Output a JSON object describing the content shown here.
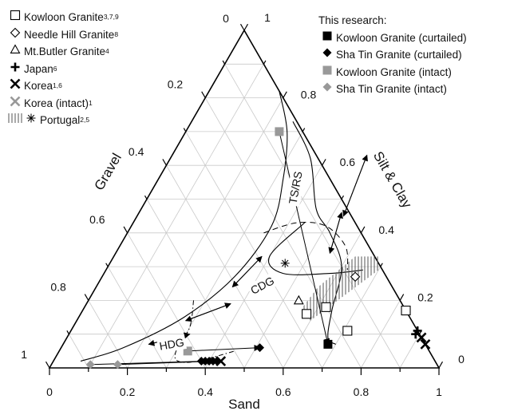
{
  "chart_data": {
    "type": "ternary",
    "axes": {
      "bottom": {
        "label": "Sand",
        "ticks": [
          "0",
          "0.2",
          "0.4",
          "0.6",
          "0.8",
          "1"
        ]
      },
      "left": {
        "label": "Gravel",
        "ticks": [
          "0.2",
          "0.4",
          "0.6",
          "0.8",
          "1"
        ],
        "top_tick": "0"
      },
      "right": {
        "label": "Silt & Clay",
        "ticks": [
          "0.2",
          "0.4",
          "0.6",
          "0.8"
        ],
        "top_tick": "1",
        "corner_tick": "0"
      }
    },
    "grid": "triangular, step 0.1",
    "annotations": [
      "TS/RS",
      "CDG",
      "HDG"
    ],
    "legend_literature": [
      {
        "name": "Kowloon Granite",
        "refs": "3,7,9",
        "marker": "open-square"
      },
      {
        "name": "Needle Hill Granite",
        "refs": "8",
        "marker": "open-diamond"
      },
      {
        "name": "Mt.Butler Granite",
        "refs": "4",
        "marker": "open-triangle"
      },
      {
        "name": "Japan",
        "refs": "6",
        "marker": "plus"
      },
      {
        "name": "Korea",
        "refs": "1,6",
        "marker": "cross"
      },
      {
        "name": "Korea (intact)",
        "refs": "1",
        "marker": "grey-cross"
      },
      {
        "name": "Portugal",
        "refs": "2,5",
        "marker": "hatched-area / asterisk"
      }
    ],
    "legend_research_title": "This research:",
    "legend_research": [
      {
        "name": "Kowloon Granite (curtailed)",
        "marker": "filled-square"
      },
      {
        "name": "Sha Tin Granite (curtailed)",
        "marker": "filled-diamond"
      },
      {
        "name": "Kowloon Granite (intact)",
        "marker": "grey-square"
      },
      {
        "name": "Sha Tin Granite (intact)",
        "marker": "grey-diamond"
      }
    ],
    "series": [
      {
        "name": "Kowloon Granite",
        "marker": "open-square",
        "points": [
          {
            "sand": 0.83,
            "silt_clay": 0.17
          },
          {
            "sand": 0.62,
            "silt_clay": 0.18
          },
          {
            "sand": 0.58,
            "silt_clay": 0.16
          },
          {
            "sand": 0.71,
            "silt_clay": 0.11
          }
        ]
      },
      {
        "name": "Needle Hill Granite",
        "marker": "open-diamond",
        "points": [
          {
            "sand": 0.65,
            "silt_clay": 0.27
          }
        ]
      },
      {
        "name": "Mt.Butler Granite",
        "marker": "open-triangle",
        "points": [
          {
            "sand": 0.54,
            "silt_clay": 0.2
          }
        ]
      },
      {
        "name": "Japan",
        "marker": "plus",
        "points": [
          {
            "sand": 0.89,
            "silt_clay": 0.11
          },
          {
            "sand": 0.89,
            "silt_clay": 0.1
          }
        ]
      },
      {
        "name": "Korea",
        "marker": "cross",
        "points": [
          {
            "sand": 0.93,
            "silt_clay": 0.07
          },
          {
            "sand": 0.91,
            "silt_clay": 0.09
          },
          {
            "sand": 0.43,
            "silt_clay": 0.02
          }
        ]
      },
      {
        "name": "Portugal",
        "marker": "asterisk",
        "points": [
          {
            "sand": 0.45,
            "silt_clay": 0.31
          }
        ]
      },
      {
        "name": "Kowloon Granite (curtailed)",
        "marker": "filled-square",
        "points": [
          {
            "sand": 0.68,
            "silt_clay": 0.07
          }
        ]
      },
      {
        "name": "Sha Tin Granite (curtailed)",
        "marker": "filled-diamond",
        "points": [
          {
            "sand": 0.51,
            "silt_clay": 0.06
          },
          {
            "sand": 0.38,
            "silt_clay": 0.02
          },
          {
            "sand": 0.39,
            "silt_clay": 0.02
          },
          {
            "sand": 0.4,
            "silt_clay": 0.02
          },
          {
            "sand": 0.41,
            "silt_clay": 0.02
          },
          {
            "sand": 0.42,
            "silt_clay": 0.02
          }
        ]
      },
      {
        "name": "Kowloon Granite (intact)",
        "marker": "grey-square",
        "points": [
          {
            "sand": 0.24,
            "silt_clay": 0.7
          },
          {
            "sand": 0.33,
            "silt_clay": 0.05
          }
        ]
      },
      {
        "name": "Sha Tin Granite (intact)",
        "marker": "grey-diamond",
        "points": [
          {
            "sand": 0.1,
            "silt_clay": 0.01
          },
          {
            "sand": 0.17,
            "silt_clay": 0.01
          }
        ]
      }
    ],
    "portugal_region": [
      {
        "sand": 0.7,
        "silt_clay": 0.29
      },
      {
        "sand": 0.68,
        "silt_clay": 0.33
      },
      {
        "sand": 0.62,
        "silt_clay": 0.33
      },
      {
        "sand": 0.57,
        "silt_clay": 0.24
      },
      {
        "sand": 0.56,
        "silt_clay": 0.18
      },
      {
        "sand": 0.6,
        "silt_clay": 0.14
      }
    ],
    "arrows": [
      {
        "from": {
          "sand": 0.24,
          "silt_clay": 0.7
        },
        "to": {
          "sand": 0.68,
          "silt_clay": 0.07
        }
      },
      {
        "from": {
          "sand": 0.33,
          "silt_clay": 0.05
        },
        "to": {
          "sand": 0.51,
          "silt_clay": 0.06
        }
      },
      {
        "from": {
          "sand": 0.1,
          "silt_clay": 0.01
        },
        "to": {
          "sand": 0.39,
          "silt_clay": 0.02
        }
      },
      {
        "from": {
          "sand": 0.17,
          "silt_clay": 0.01
        },
        "to": {
          "sand": 0.41,
          "silt_clay": 0.02
        }
      }
    ]
  }
}
